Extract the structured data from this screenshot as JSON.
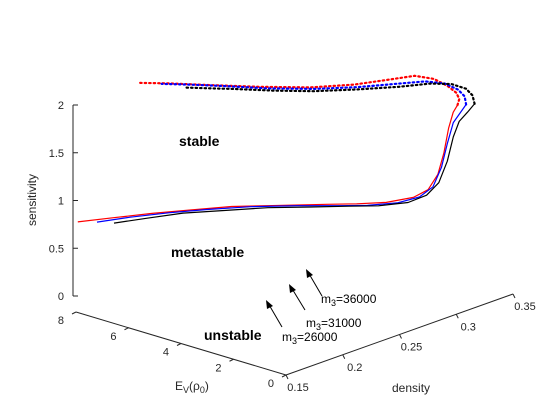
{
  "chart_data": {
    "type": "line",
    "title": "",
    "projection": "3d",
    "grid": false,
    "axes": {
      "x": {
        "label": "density",
        "range": [
          0.15,
          0.35
        ],
        "ticks": [
          "0.15",
          "0.2",
          "0.25",
          "0.3",
          "0.35"
        ]
      },
      "y": {
        "label": "E",
        "label_sub": "V",
        "label_tail": "(ρ",
        "label_tail_sub": "0",
        "label_close": ")",
        "range": [
          0,
          8
        ],
        "ticks": [
          "0",
          "2",
          "4",
          "6",
          "8"
        ]
      },
      "z": {
        "label": "sensitivity",
        "range": [
          0,
          2
        ],
        "ticks": [
          "0",
          "0.5",
          "1",
          "1.5",
          "2"
        ]
      }
    },
    "regions": {
      "stable": "stable",
      "metastable": "metastable",
      "unstable": "unstable"
    },
    "annotations": [
      {
        "text": "m",
        "sub": "3",
        "tail": "=36000",
        "color": "#000000"
      },
      {
        "text": "m",
        "sub": "3",
        "tail": "=31000",
        "color": "#0000ff"
      },
      {
        "text": "m",
        "sub": "3",
        "tail": "=26000",
        "color": "#000000"
      }
    ],
    "series": [
      {
        "color": "#ff0000",
        "solid": [
          {
            "x": 0.14,
            "y": 7.5,
            "z": 0.2
          },
          {
            "x": 0.16,
            "y": 7.0,
            "z": 0.2
          },
          {
            "x": 0.18,
            "y": 6.4,
            "z": 0.21
          },
          {
            "x": 0.2,
            "y": 5.8,
            "z": 0.21
          },
          {
            "x": 0.22,
            "y": 5.1,
            "z": 0.22
          },
          {
            "x": 0.24,
            "y": 4.2,
            "z": 0.22
          },
          {
            "x": 0.26,
            "y": 3.2,
            "z": 0.23
          },
          {
            "x": 0.27,
            "y": 2.5,
            "z": 0.25
          },
          {
            "x": 0.28,
            "y": 1.8,
            "z": 0.28
          },
          {
            "x": 0.29,
            "y": 1.2,
            "z": 0.34
          },
          {
            "x": 0.296,
            "y": 0.9,
            "z": 0.42
          },
          {
            "x": 0.3,
            "y": 0.7,
            "z": 0.58
          },
          {
            "x": 0.303,
            "y": 0.6,
            "z": 0.8
          },
          {
            "x": 0.306,
            "y": 0.55,
            "z": 1.05
          },
          {
            "x": 0.31,
            "y": 0.55,
            "z": 1.2
          },
          {
            "x": 0.315,
            "y": 0.6,
            "z": 1.25
          }
        ],
        "dotted": [
          {
            "x": 0.315,
            "y": 0.6,
            "z": 1.25
          },
          {
            "x": 0.32,
            "y": 0.75,
            "z": 1.28
          },
          {
            "x": 0.322,
            "y": 0.95,
            "z": 1.32
          },
          {
            "x": 0.32,
            "y": 1.2,
            "z": 1.38
          },
          {
            "x": 0.315,
            "y": 1.5,
            "z": 1.45
          },
          {
            "x": 0.305,
            "y": 1.8,
            "z": 1.5
          },
          {
            "x": 0.29,
            "y": 2.1,
            "z": 1.5
          },
          {
            "x": 0.27,
            "y": 2.6,
            "z": 1.49
          },
          {
            "x": 0.25,
            "y": 3.4,
            "z": 1.48
          },
          {
            "x": 0.23,
            "y": 4.5,
            "z": 1.48
          },
          {
            "x": 0.215,
            "y": 5.6,
            "z": 1.47
          },
          {
            "x": 0.2,
            "y": 6.6,
            "z": 1.47
          },
          {
            "x": 0.19,
            "y": 7.3,
            "z": 1.46
          }
        ]
      },
      {
        "color": "#0000ff",
        "solid": [
          {
            "x": 0.15,
            "y": 7.2,
            "z": 0.18
          },
          {
            "x": 0.17,
            "y": 6.8,
            "z": 0.18
          },
          {
            "x": 0.19,
            "y": 6.2,
            "z": 0.19
          },
          {
            "x": 0.21,
            "y": 5.6,
            "z": 0.19
          },
          {
            "x": 0.23,
            "y": 4.8,
            "z": 0.2
          },
          {
            "x": 0.25,
            "y": 3.9,
            "z": 0.2
          },
          {
            "x": 0.265,
            "y": 3.0,
            "z": 0.21
          },
          {
            "x": 0.275,
            "y": 2.3,
            "z": 0.23
          },
          {
            "x": 0.285,
            "y": 1.6,
            "z": 0.27
          },
          {
            "x": 0.293,
            "y": 1.1,
            "z": 0.34
          },
          {
            "x": 0.298,
            "y": 0.8,
            "z": 0.45
          },
          {
            "x": 0.302,
            "y": 0.65,
            "z": 0.65
          },
          {
            "x": 0.305,
            "y": 0.55,
            "z": 0.9
          },
          {
            "x": 0.309,
            "y": 0.5,
            "z": 1.1
          },
          {
            "x": 0.316,
            "y": 0.52,
            "z": 1.18
          },
          {
            "x": 0.323,
            "y": 0.62,
            "z": 1.22
          }
        ],
        "dotted": [
          {
            "x": 0.323,
            "y": 0.62,
            "z": 1.22
          },
          {
            "x": 0.327,
            "y": 0.85,
            "z": 1.27
          },
          {
            "x": 0.327,
            "y": 1.1,
            "z": 1.32
          },
          {
            "x": 0.322,
            "y": 1.4,
            "z": 1.38
          },
          {
            "x": 0.312,
            "y": 1.7,
            "z": 1.42
          },
          {
            "x": 0.296,
            "y": 2.1,
            "z": 1.43
          },
          {
            "x": 0.276,
            "y": 2.7,
            "z": 1.43
          },
          {
            "x": 0.256,
            "y": 3.5,
            "z": 1.43
          },
          {
            "x": 0.238,
            "y": 4.5,
            "z": 1.43
          },
          {
            "x": 0.222,
            "y": 5.5,
            "z": 1.44
          },
          {
            "x": 0.21,
            "y": 6.3,
            "z": 1.44
          },
          {
            "x": 0.2,
            "y": 6.9,
            "z": 1.44
          }
        ]
      },
      {
        "color": "#000000",
        "solid": [
          {
            "x": 0.158,
            "y": 6.9,
            "z": 0.16
          },
          {
            "x": 0.178,
            "y": 6.5,
            "z": 0.16
          },
          {
            "x": 0.198,
            "y": 6.0,
            "z": 0.17
          },
          {
            "x": 0.218,
            "y": 5.3,
            "z": 0.17
          },
          {
            "x": 0.238,
            "y": 4.5,
            "z": 0.18
          },
          {
            "x": 0.255,
            "y": 3.6,
            "z": 0.19
          },
          {
            "x": 0.27,
            "y": 2.8,
            "z": 0.2
          },
          {
            "x": 0.28,
            "y": 2.1,
            "z": 0.22
          },
          {
            "x": 0.29,
            "y": 1.4,
            "z": 0.27
          },
          {
            "x": 0.297,
            "y": 1.0,
            "z": 0.35
          },
          {
            "x": 0.302,
            "y": 0.75,
            "z": 0.48
          },
          {
            "x": 0.306,
            "y": 0.6,
            "z": 0.7
          },
          {
            "x": 0.309,
            "y": 0.5,
            "z": 0.95
          },
          {
            "x": 0.313,
            "y": 0.45,
            "z": 1.1
          },
          {
            "x": 0.321,
            "y": 0.48,
            "z": 1.16
          },
          {
            "x": 0.33,
            "y": 0.6,
            "z": 1.2
          }
        ],
        "dotted": [
          {
            "x": 0.33,
            "y": 0.6,
            "z": 1.2
          },
          {
            "x": 0.334,
            "y": 0.85,
            "z": 1.25
          },
          {
            "x": 0.334,
            "y": 1.1,
            "z": 1.3
          },
          {
            "x": 0.328,
            "y": 1.4,
            "z": 1.35
          },
          {
            "x": 0.316,
            "y": 1.7,
            "z": 1.38
          },
          {
            "x": 0.298,
            "y": 2.1,
            "z": 1.39
          },
          {
            "x": 0.278,
            "y": 2.8,
            "z": 1.39
          },
          {
            "x": 0.258,
            "y": 3.6,
            "z": 1.39
          },
          {
            "x": 0.242,
            "y": 4.5,
            "z": 1.39
          },
          {
            "x": 0.228,
            "y": 5.3,
            "z": 1.4
          },
          {
            "x": 0.218,
            "y": 5.9,
            "z": 1.4
          },
          {
            "x": 0.21,
            "y": 6.4,
            "z": 1.4
          }
        ]
      }
    ]
  }
}
